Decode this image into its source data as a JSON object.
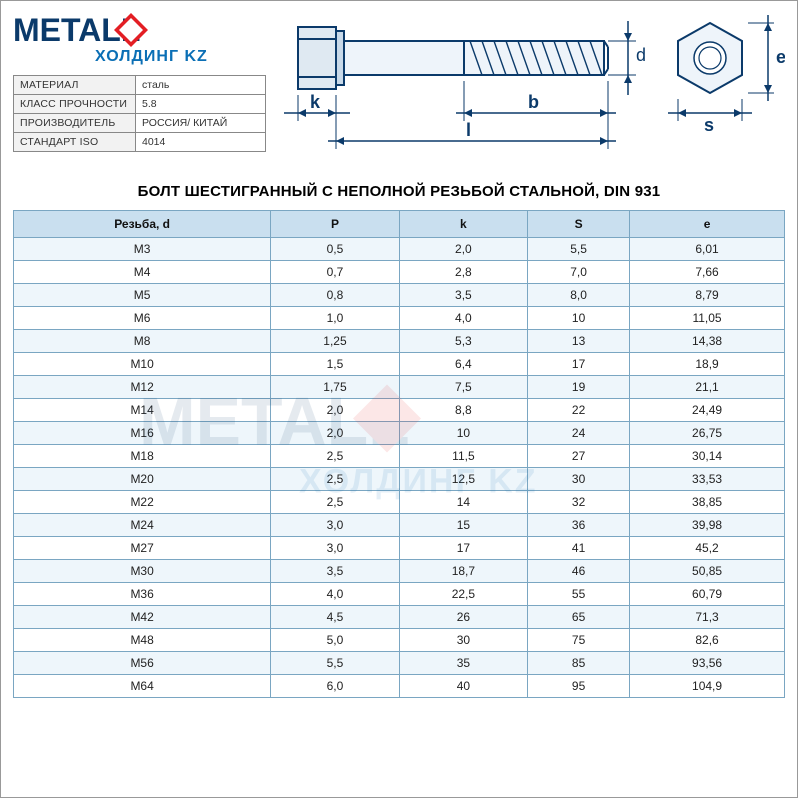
{
  "logo": {
    "text_main": "METALL",
    "text_sub": "ХОЛДИНГ KZ",
    "shape_color": "#e31e24",
    "main_color": "#0b3a6a",
    "sub_color": "#0b6fb5"
  },
  "specs": {
    "rows": [
      {
        "label": "МАТЕРИАЛ",
        "value": "сталь"
      },
      {
        "label": "КЛАСС ПРОЧНОСТИ",
        "value": "5.8"
      },
      {
        "label": "ПРОИЗВОДИТЕЛЬ",
        "value": "РОССИЯ/ КИТАЙ"
      },
      {
        "label": "СТАНДАРТ ISO",
        "value": "4014"
      }
    ]
  },
  "diagram": {
    "labels": {
      "d": "d",
      "e": "e",
      "s": "s",
      "b": "b",
      "k": "k",
      "l": "l"
    },
    "line_color": "#0b3a6a",
    "fill_light": "#dfe9f2",
    "fill_mid": "#c8d9e9",
    "label_fontsize": 18
  },
  "title": "БОЛТ ШЕСТИГРАННЫЙ С НЕПОЛНОЙ РЕЗЬБОЙ СТАЛЬНОЙ, DIN 931",
  "table": {
    "header_bg": "#c9dfef",
    "row_odd_bg": "#eef6fb",
    "row_even_bg": "#ffffff",
    "border_color": "#7aa6c2",
    "font_size": 12,
    "columns": [
      "Резьба, d",
      "P",
      "k",
      "S",
      "e"
    ],
    "rows": [
      [
        "M3",
        "0,5",
        "2,0",
        "5,5",
        "6,01"
      ],
      [
        "M4",
        "0,7",
        "2,8",
        "7,0",
        "7,66"
      ],
      [
        "M5",
        "0,8",
        "3,5",
        "8,0",
        "8,79"
      ],
      [
        "M6",
        "1,0",
        "4,0",
        "10",
        "11,05"
      ],
      [
        "M8",
        "1,25",
        "5,3",
        "13",
        "14,38"
      ],
      [
        "M10",
        "1,5",
        "6,4",
        "17",
        "18,9"
      ],
      [
        "M12",
        "1,75",
        "7,5",
        "19",
        "21,1"
      ],
      [
        "M14",
        "2,0",
        "8,8",
        "22",
        "24,49"
      ],
      [
        "M16",
        "2,0",
        "10",
        "24",
        "26,75"
      ],
      [
        "M18",
        "2,5",
        "11,5",
        "27",
        "30,14"
      ],
      [
        "M20",
        "2,5",
        "12,5",
        "30",
        "33,53"
      ],
      [
        "M22",
        "2,5",
        "14",
        "32",
        "38,85"
      ],
      [
        "M24",
        "3,0",
        "15",
        "36",
        "39,98"
      ],
      [
        "M27",
        "3,0",
        "17",
        "41",
        "45,2"
      ],
      [
        "M30",
        "3,5",
        "18,7",
        "46",
        "50,85"
      ],
      [
        "M36",
        "4,0",
        "22,5",
        "55",
        "60,79"
      ],
      [
        "M42",
        "4,5",
        "26",
        "65",
        "71,3"
      ],
      [
        "M48",
        "5,0",
        "30",
        "75",
        "82,6"
      ],
      [
        "M56",
        "5,5",
        "35",
        "85",
        "93,56"
      ],
      [
        "M64",
        "6,0",
        "40",
        "95",
        "104,9"
      ]
    ]
  }
}
